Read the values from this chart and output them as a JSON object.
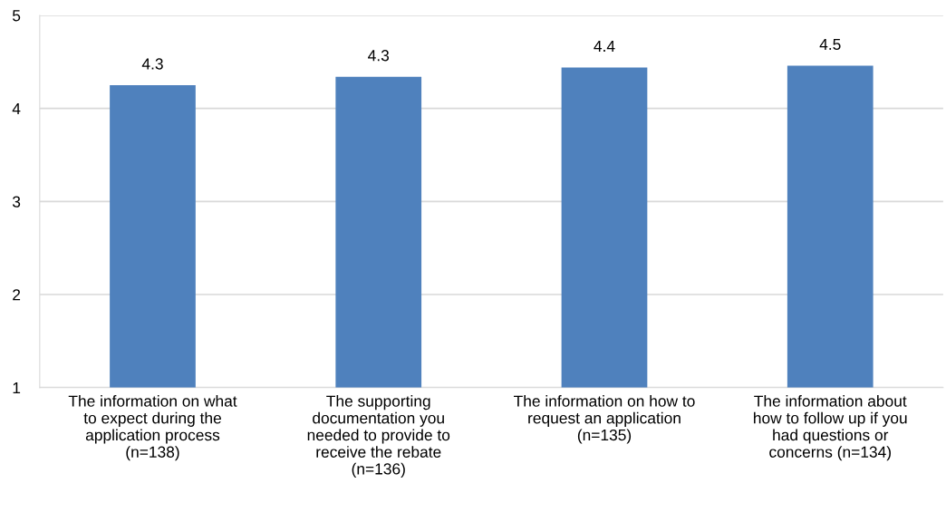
{
  "chart_data": {
    "type": "bar",
    "categories": [
      "The information on what\nto expect during the\napplication process\n(n=138)",
      "The supporting\ndocumentation you\nneeded to provide to\nreceive the rebate\n(n=136)",
      "The information on how to\nrequest an application\n(n=135)",
      "The information about\nhow to follow up if you\nhad questions or\nconcerns (n=134)"
    ],
    "values": [
      4.25,
      4.34,
      4.44,
      4.46
    ],
    "value_labels": [
      "4.3",
      "4.3",
      "4.4",
      "4.5"
    ],
    "color": "#4f81bd",
    "ylim": [
      1,
      5
    ],
    "yticks": [
      1,
      2,
      3,
      4,
      5
    ],
    "grid": "y",
    "legend": false
  }
}
